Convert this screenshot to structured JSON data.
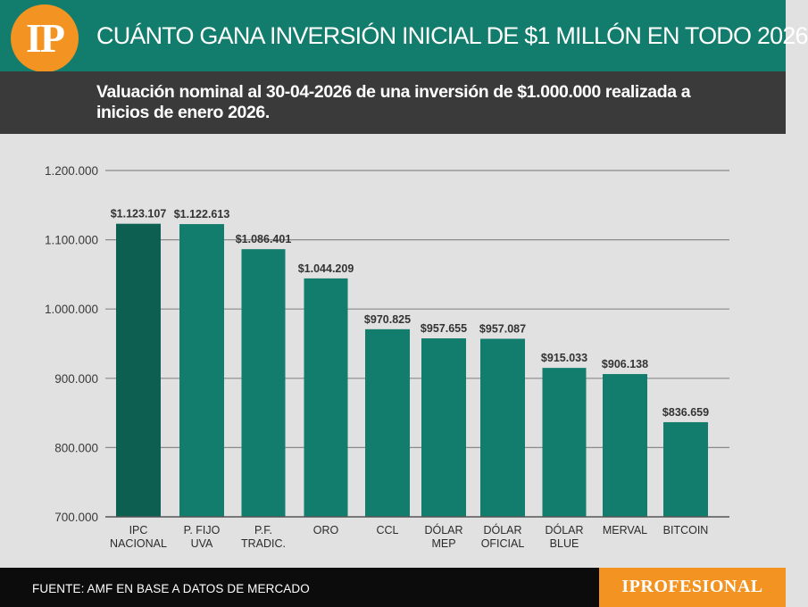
{
  "logo": {
    "text": "IP"
  },
  "header": {
    "title": "CUÁNTO GANA INVERSIÓN INICIAL DE $1 MILLÓN EN TODO 2026",
    "subtitle": "Valuación nominal al 30-04-2026 de una inversión de $1.000.000 realizada a inicios de enero 2026."
  },
  "colors": {
    "header_bg": "#137d6d",
    "subheader_bg": "#3b3a3b",
    "bar": "#137d6d",
    "bar_highlight": "#0d5f52",
    "plot_bg": "#e1e1e1",
    "accent": "#f29322"
  },
  "chart_data": {
    "type": "bar",
    "categories": [
      [
        "IPC",
        "NACIONAL"
      ],
      [
        "P. FIJO",
        "UVA"
      ],
      [
        "P.F.",
        "TRADIC."
      ],
      [
        "ORO"
      ],
      [
        "CCL"
      ],
      [
        "DÓLAR",
        "MEP"
      ],
      [
        "DÓLAR",
        "OFICIAL"
      ],
      [
        "DÓLAR",
        "BLUE"
      ],
      [
        "MERVAL"
      ],
      [
        "BITCOIN"
      ]
    ],
    "values": [
      1123107,
      1122613,
      1086401,
      1044209,
      970825,
      957655,
      957087,
      915033,
      906138,
      836659
    ],
    "data_labels": [
      "$1.123.107",
      "$1.122.613",
      "$1.086.401",
      "$1.044.209",
      "$970.825",
      "$957.655",
      "$957.087",
      "$915.033",
      "$906.138",
      "$836.659"
    ],
    "highlight_index": 0,
    "yticks": [
      700000,
      800000,
      900000,
      1000000,
      1100000,
      1200000
    ],
    "ytick_labels": [
      "700.000",
      "800.000",
      "900.000",
      "1.000.000",
      "1.100.000",
      "1.200.000"
    ],
    "ylim": [
      700000,
      1200000
    ],
    "grid": true,
    "legend": "none"
  },
  "footer": {
    "source": "FUENTE: AMF EN BASE A DATOS DE MERCADO",
    "brand": "IPROFESIONAL"
  }
}
